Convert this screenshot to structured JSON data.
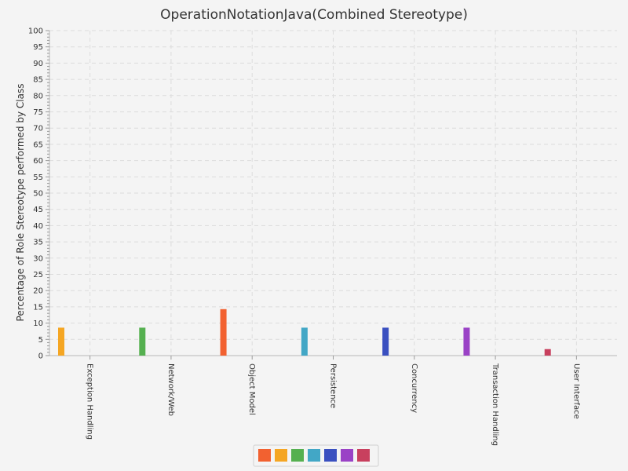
{
  "chart_data": {
    "type": "bar",
    "title": "OperationNotationJava(Combined Stereotype)",
    "xlabel": "",
    "ylabel": "Percentage of Role Stereotype performed by Class",
    "ylim": [
      0,
      100
    ],
    "y_major_step": 5,
    "y_minor_step": 1,
    "grid": true,
    "legend_position": "bottom",
    "categories": [
      "Exception Handling",
      "Network/Web",
      "Object Model",
      "Persistence",
      "Concurrency",
      "Transaction Handling",
      "User Interface"
    ],
    "series": [
      {
        "color": "#f26130",
        "values": [
          0,
          0,
          14.3,
          0,
          0,
          0,
          0
        ]
      },
      {
        "color": "#f5a623",
        "values": [
          8.6,
          0,
          0,
          0,
          0,
          0,
          0
        ]
      },
      {
        "color": "#55b050",
        "values": [
          0,
          8.6,
          0,
          0,
          0,
          0,
          0
        ]
      },
      {
        "color": "#42a7c6",
        "values": [
          0,
          0,
          0,
          8.6,
          0,
          0,
          0
        ]
      },
      {
        "color": "#3a50c0",
        "values": [
          0,
          0,
          0,
          0,
          8.6,
          0,
          0
        ]
      },
      {
        "color": "#9a42c6",
        "values": [
          0,
          0,
          0,
          0,
          0,
          8.6,
          0
        ]
      },
      {
        "color": "#c8405e",
        "values": [
          0,
          0,
          0,
          0,
          0,
          0,
          2.0
        ]
      }
    ]
  }
}
